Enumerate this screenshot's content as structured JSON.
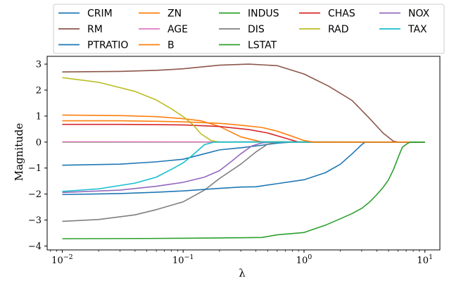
{
  "chart_data": {
    "type": "line",
    "xscale": "log",
    "xlabel": "λ",
    "ylabel": "Magnitude",
    "xlim": [
      0.0075,
      13.3
    ],
    "ylim": [
      -4.15,
      3.3
    ],
    "xticks": [
      {
        "value": 0.01,
        "base": "10",
        "exp": "−2"
      },
      {
        "value": 0.1,
        "base": "10",
        "exp": "−1"
      },
      {
        "value": 1,
        "base": "10",
        "exp": "0"
      },
      {
        "value": 10,
        "base": "10",
        "exp": "1"
      }
    ],
    "yticks": [
      {
        "value": 3,
        "label": "3"
      },
      {
        "value": 2,
        "label": "2"
      },
      {
        "value": 1,
        "label": "1"
      },
      {
        "value": 0,
        "label": "0"
      },
      {
        "value": -1,
        "label": "−1"
      },
      {
        "value": -2,
        "label": "−2"
      },
      {
        "value": -3,
        "label": "−3"
      },
      {
        "value": -4,
        "label": "−4"
      }
    ],
    "legend": {
      "placement": "top",
      "columns": 5
    },
    "series": [
      {
        "name": "CRIM",
        "color": "#1f77b4",
        "points": [
          [
            0.01,
            -0.89
          ],
          [
            0.03,
            -0.85
          ],
          [
            0.06,
            -0.76
          ],
          [
            0.1,
            -0.66
          ],
          [
            0.15,
            -0.45
          ],
          [
            0.2,
            -0.3
          ],
          [
            0.3,
            -0.22
          ],
          [
            0.45,
            -0.12
          ],
          [
            0.6,
            -0.04
          ],
          [
            0.8,
            0
          ],
          [
            10,
            0
          ]
        ]
      },
      {
        "name": "ZN",
        "color": "#ff7f0e",
        "points": [
          [
            0.01,
            1.04
          ],
          [
            0.03,
            1.02
          ],
          [
            0.06,
            0.98
          ],
          [
            0.1,
            0.9
          ],
          [
            0.14,
            0.82
          ],
          [
            0.2,
            0.6
          ],
          [
            0.3,
            0.2
          ],
          [
            0.45,
            0
          ],
          [
            10,
            0
          ]
        ]
      },
      {
        "name": "INDUS",
        "color": "#2ca02c",
        "points": [
          [
            0.01,
            0
          ],
          [
            0.2,
            0
          ],
          [
            0.5,
            0.01
          ],
          [
            10,
            0
          ]
        ]
      },
      {
        "name": "CHAS",
        "color": "#d62728",
        "points": [
          [
            0.01,
            0.68
          ],
          [
            0.03,
            0.68
          ],
          [
            0.06,
            0.67
          ],
          [
            0.1,
            0.66
          ],
          [
            0.2,
            0.6
          ],
          [
            0.35,
            0.48
          ],
          [
            0.5,
            0.35
          ],
          [
            0.7,
            0.15
          ],
          [
            0.9,
            0
          ],
          [
            10,
            0
          ]
        ]
      },
      {
        "name": "NOX",
        "color": "#9467bd",
        "points": [
          [
            0.01,
            -1.94
          ],
          [
            0.03,
            -1.85
          ],
          [
            0.06,
            -1.7
          ],
          [
            0.1,
            -1.55
          ],
          [
            0.15,
            -1.35
          ],
          [
            0.2,
            -1.1
          ],
          [
            0.25,
            -0.75
          ],
          [
            0.3,
            -0.45
          ],
          [
            0.37,
            -0.15
          ],
          [
            0.45,
            -0.03
          ],
          [
            0.55,
            0
          ],
          [
            10,
            0
          ]
        ]
      },
      {
        "name": "RM",
        "color": "#8c564b",
        "points": [
          [
            0.01,
            2.7
          ],
          [
            0.03,
            2.72
          ],
          [
            0.06,
            2.76
          ],
          [
            0.1,
            2.82
          ],
          [
            0.2,
            2.96
          ],
          [
            0.35,
            3
          ],
          [
            0.6,
            2.94
          ],
          [
            1,
            2.62
          ],
          [
            1.6,
            2.15
          ],
          [
            2.5,
            1.6
          ],
          [
            3.5,
            0.9
          ],
          [
            4.5,
            0.35
          ],
          [
            5.5,
            0.03
          ],
          [
            6,
            0
          ],
          [
            10,
            0
          ]
        ]
      },
      {
        "name": "AGE",
        "color": "#e377c2",
        "points": [
          [
            0.01,
            0.01
          ],
          [
            10,
            0
          ]
        ]
      },
      {
        "name": "DIS",
        "color": "#7f7f7f",
        "points": [
          [
            0.01,
            -3.05
          ],
          [
            0.02,
            -2.98
          ],
          [
            0.04,
            -2.8
          ],
          [
            0.06,
            -2.6
          ],
          [
            0.1,
            -2.3
          ],
          [
            0.15,
            -1.85
          ],
          [
            0.2,
            -1.4
          ],
          [
            0.3,
            -0.85
          ],
          [
            0.4,
            -0.38
          ],
          [
            0.5,
            -0.08
          ],
          [
            0.6,
            0
          ],
          [
            10,
            0
          ]
        ]
      },
      {
        "name": "RAD",
        "color": "#bcbd22",
        "points": [
          [
            0.01,
            2.48
          ],
          [
            0.02,
            2.3
          ],
          [
            0.04,
            1.95
          ],
          [
            0.06,
            1.62
          ],
          [
            0.08,
            1.28
          ],
          [
            0.1,
            0.98
          ],
          [
            0.12,
            0.68
          ],
          [
            0.14,
            0.32
          ],
          [
            0.17,
            0.06
          ],
          [
            0.2,
            0
          ],
          [
            10,
            0
          ]
        ]
      },
      {
        "name": "TAX",
        "color": "#17becf",
        "points": [
          [
            0.01,
            -1.9
          ],
          [
            0.02,
            -1.8
          ],
          [
            0.04,
            -1.58
          ],
          [
            0.06,
            -1.35
          ],
          [
            0.08,
            -1.05
          ],
          [
            0.1,
            -0.8
          ],
          [
            0.12,
            -0.5
          ],
          [
            0.15,
            -0.1
          ],
          [
            0.18,
            0
          ],
          [
            10,
            0
          ]
        ]
      },
      {
        "name": "PTRATIO",
        "color": "#1f77b4",
        "points": [
          [
            0.01,
            -2.02
          ],
          [
            0.03,
            -1.98
          ],
          [
            0.06,
            -1.93
          ],
          [
            0.1,
            -1.88
          ],
          [
            0.2,
            -1.78
          ],
          [
            0.3,
            -1.73
          ],
          [
            0.4,
            -1.72
          ],
          [
            0.6,
            -1.6
          ],
          [
            1,
            -1.45
          ],
          [
            1.5,
            -1.18
          ],
          [
            2,
            -0.85
          ],
          [
            2.5,
            -0.45
          ],
          [
            3,
            -0.1
          ],
          [
            3.2,
            0
          ],
          [
            10,
            0
          ]
        ]
      },
      {
        "name": "B",
        "color": "#ff7f0e",
        "points": [
          [
            0.01,
            0.82
          ],
          [
            0.03,
            0.82
          ],
          [
            0.06,
            0.8
          ],
          [
            0.1,
            0.78
          ],
          [
            0.2,
            0.72
          ],
          [
            0.3,
            0.65
          ],
          [
            0.45,
            0.56
          ],
          [
            0.6,
            0.42
          ],
          [
            0.8,
            0.22
          ],
          [
            1,
            0.06
          ],
          [
            1.2,
            0
          ],
          [
            10,
            0
          ]
        ]
      },
      {
        "name": "LSTAT",
        "color": "#2ca02c",
        "points": [
          [
            0.01,
            -3.72
          ],
          [
            0.05,
            -3.71
          ],
          [
            0.1,
            -3.7
          ],
          [
            0.3,
            -3.68
          ],
          [
            0.45,
            -3.67
          ],
          [
            0.6,
            -3.57
          ],
          [
            1,
            -3.48
          ],
          [
            1.5,
            -3.2
          ],
          [
            2,
            -2.95
          ],
          [
            2.5,
            -2.75
          ],
          [
            3,
            -2.55
          ],
          [
            3.5,
            -2.3
          ],
          [
            4,
            -2.02
          ],
          [
            4.5,
            -1.75
          ],
          [
            5,
            -1.45
          ],
          [
            5.5,
            -1.05
          ],
          [
            6,
            -0.6
          ],
          [
            6.5,
            -0.2
          ],
          [
            7.2,
            -0.05
          ],
          [
            7.6,
            0
          ],
          [
            10,
            0
          ]
        ]
      }
    ]
  }
}
